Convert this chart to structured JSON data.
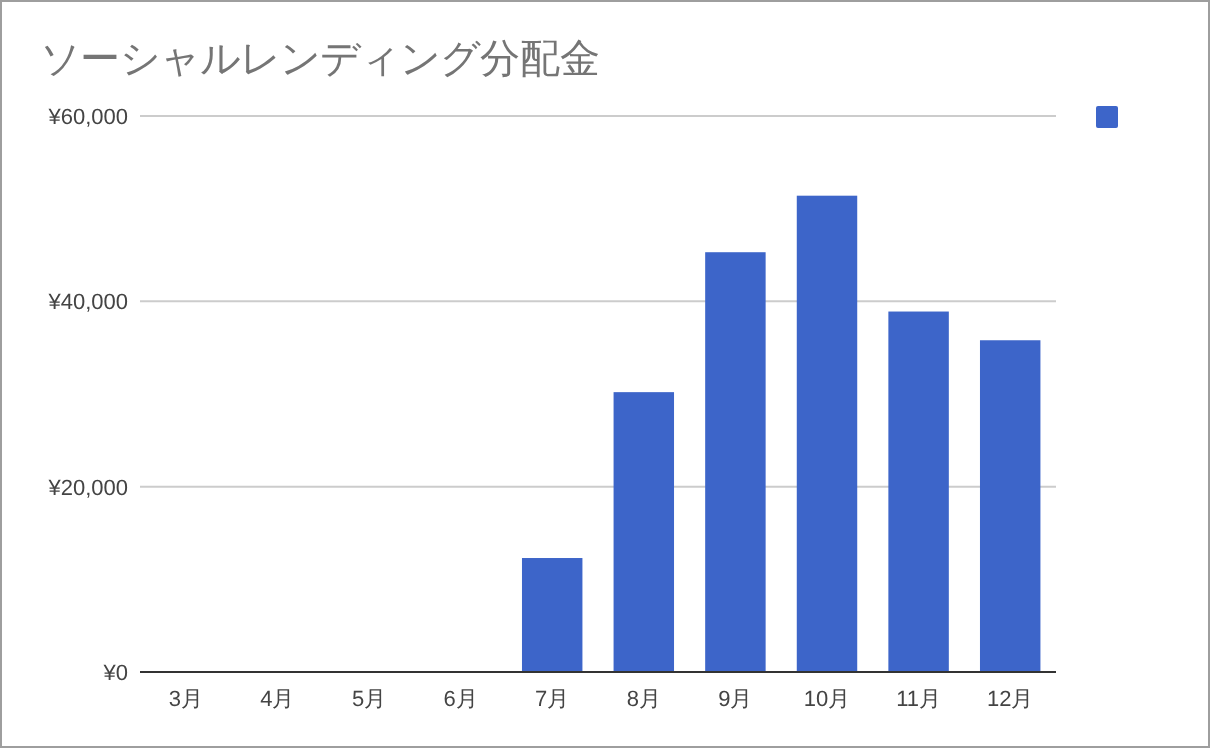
{
  "chart_data": {
    "type": "bar",
    "title": "ソーシャルレンディング分配金",
    "categories": [
      "3月",
      "4月",
      "5月",
      "6月",
      "7月",
      "8月",
      "9月",
      "10月",
      "11月",
      "12月"
    ],
    "series": [
      {
        "color": "#3d65c9",
        "values": [
          0,
          0,
          0,
          0,
          12300,
          30200,
          45300,
          51400,
          38900,
          35800
        ]
      }
    ],
    "ylim": [
      0,
      60000
    ],
    "yticks": [
      {
        "value": 0,
        "label": "¥0"
      },
      {
        "value": 20000,
        "label": "¥20,000"
      },
      {
        "value": 40000,
        "label": "¥40,000"
      },
      {
        "value": 60000,
        "label": "¥60,000"
      }
    ],
    "grid": "y"
  }
}
